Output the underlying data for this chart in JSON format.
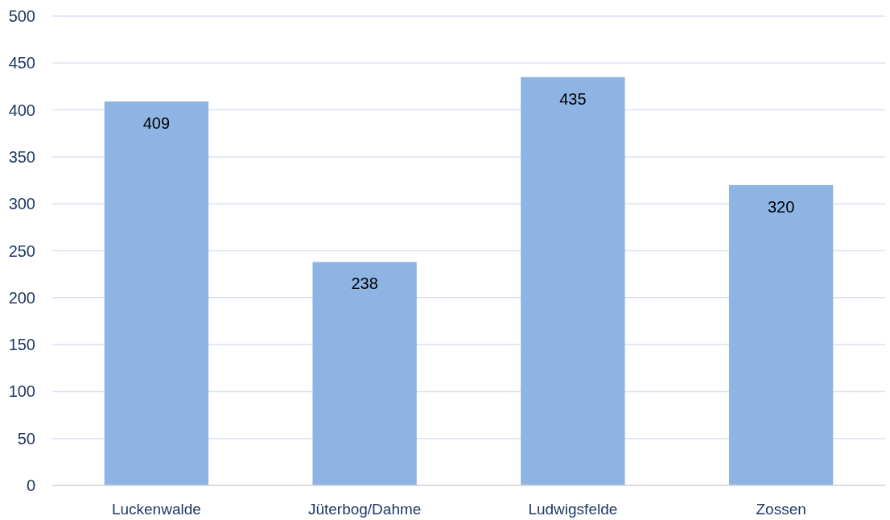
{
  "chart_data": {
    "type": "bar",
    "categories": [
      "Luckenwalde",
      "Jüterbog/Dahme",
      "Ludwigsfelde",
      "Zossen"
    ],
    "values": [
      409,
      238,
      435,
      320
    ],
    "color": "#8eb4e3",
    "ylim": [
      0,
      500
    ],
    "yticks": [
      0,
      50,
      100,
      150,
      200,
      250,
      300,
      350,
      400,
      450,
      500
    ],
    "grid": "y",
    "data_labels": true
  }
}
